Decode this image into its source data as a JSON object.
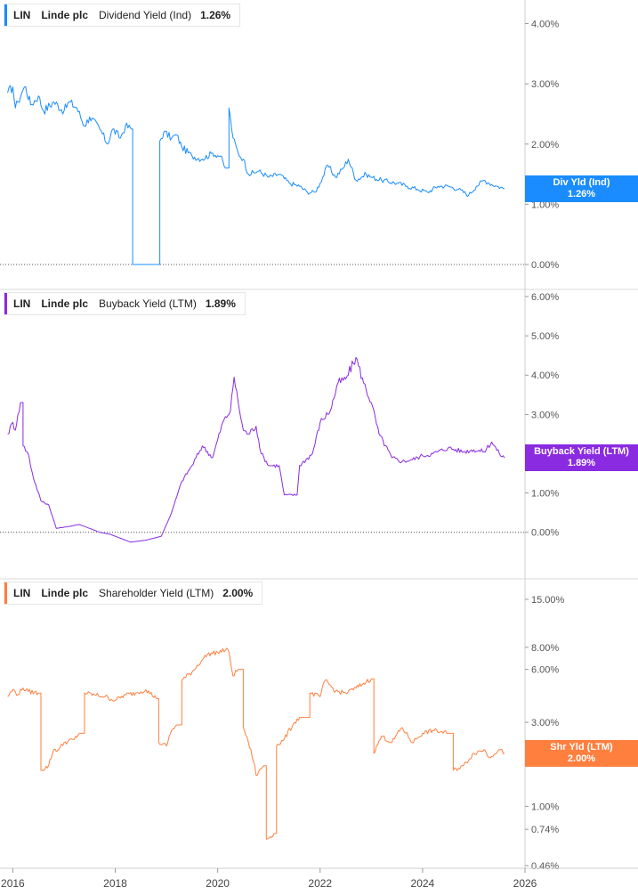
{
  "chart_data": [
    {
      "type": "line",
      "ticker": "LIN",
      "company": "Linde plc",
      "metric": "Dividend Yield (Ind)",
      "latest_value": "1.26%",
      "tag_label": "Div Yld (Ind)",
      "color": "#1a8cff",
      "y_scale": "linear",
      "ylim": [
        0,
        4.2
      ],
      "y_ticks": [
        {
          "value": 4,
          "label": "4.00%"
        },
        {
          "value": 3,
          "label": "3.00%"
        },
        {
          "value": 2,
          "label": "2.00%"
        },
        {
          "value": 1,
          "label": "1.00%"
        },
        {
          "value": 0,
          "label": "0.00%"
        }
      ],
      "zero_line": true,
      "series": [
        {
          "points": [
            [
              2015.9,
              2.85
            ],
            [
              2016.0,
              2.95
            ],
            [
              2016.05,
              2.6
            ],
            [
              2016.1,
              2.7
            ],
            [
              2016.2,
              2.9
            ],
            [
              2016.25,
              2.95
            ],
            [
              2016.35,
              2.65
            ],
            [
              2016.5,
              2.8
            ],
            [
              2016.6,
              2.55
            ],
            [
              2016.8,
              2.7
            ],
            [
              2017.0,
              2.55
            ],
            [
              2017.1,
              2.7
            ],
            [
              2017.25,
              2.6
            ],
            [
              2017.4,
              2.3
            ],
            [
              2017.5,
              2.45
            ],
            [
              2017.7,
              2.25
            ],
            [
              2017.85,
              2.0
            ],
            [
              2017.95,
              2.25
            ],
            [
              2018.1,
              2.1
            ],
            [
              2018.2,
              2.3
            ],
            [
              2018.32,
              2.25
            ],
            [
              2018.34,
              0.0
            ],
            [
              2018.85,
              0.0
            ],
            [
              2018.87,
              2.05
            ],
            [
              2018.95,
              2.2
            ],
            [
              2019.1,
              2.1
            ],
            [
              2019.2,
              2.15
            ],
            [
              2019.3,
              1.95
            ],
            [
              2019.5,
              1.8
            ],
            [
              2019.7,
              1.75
            ],
            [
              2019.9,
              1.85
            ],
            [
              2020.05,
              1.8
            ],
            [
              2020.15,
              1.6
            ],
            [
              2020.22,
              2.6
            ],
            [
              2020.3,
              2.1
            ],
            [
              2020.4,
              1.85
            ],
            [
              2020.5,
              1.75
            ],
            [
              2020.6,
              1.5
            ],
            [
              2020.8,
              1.55
            ],
            [
              2021.0,
              1.45
            ],
            [
              2021.2,
              1.5
            ],
            [
              2021.4,
              1.35
            ],
            [
              2021.6,
              1.3
            ],
            [
              2021.75,
              1.2
            ],
            [
              2021.9,
              1.2
            ],
            [
              2022.0,
              1.35
            ],
            [
              2022.15,
              1.65
            ],
            [
              2022.3,
              1.45
            ],
            [
              2022.45,
              1.6
            ],
            [
              2022.55,
              1.75
            ],
            [
              2022.7,
              1.4
            ],
            [
              2022.9,
              1.5
            ],
            [
              2023.0,
              1.45
            ],
            [
              2023.2,
              1.4
            ],
            [
              2023.5,
              1.35
            ],
            [
              2023.7,
              1.3
            ],
            [
              2023.9,
              1.25
            ],
            [
              2024.1,
              1.2
            ],
            [
              2024.3,
              1.3
            ],
            [
              2024.5,
              1.3
            ],
            [
              2024.7,
              1.25
            ],
            [
              2024.9,
              1.15
            ],
            [
              2025.05,
              1.3
            ],
            [
              2025.2,
              1.4
            ],
            [
              2025.3,
              1.35
            ],
            [
              2025.45,
              1.3
            ],
            [
              2025.6,
              1.26
            ]
          ]
        }
      ]
    },
    {
      "type": "line",
      "ticker": "LIN",
      "company": "Linde plc",
      "metric": "Buyback Yield (LTM)",
      "latest_value": "1.89%",
      "tag_label": "Buyback Yield (LTM)",
      "color": "#8a2be2",
      "y_scale": "linear",
      "ylim": [
        -0.55,
        6.0
      ],
      "y_ticks": [
        {
          "value": 6,
          "label": "6.00%"
        },
        {
          "value": 5,
          "label": "5.00%"
        },
        {
          "value": 4,
          "label": "4.00%"
        },
        {
          "value": 3,
          "label": "3.00%"
        },
        {
          "value": 2,
          "label": ""
        },
        {
          "value": 1,
          "label": "1.00%"
        },
        {
          "value": 0,
          "label": "0.00%"
        }
      ],
      "zero_line": true,
      "series": [
        {
          "points": [
            [
              2015.9,
              2.5
            ],
            [
              2016.0,
              2.8
            ],
            [
              2016.05,
              2.6
            ],
            [
              2016.1,
              3.0
            ],
            [
              2016.15,
              3.3
            ],
            [
              2016.2,
              2.2
            ],
            [
              2016.3,
              2.0
            ],
            [
              2016.4,
              1.4
            ],
            [
              2016.55,
              0.8
            ],
            [
              2016.7,
              0.7
            ],
            [
              2016.85,
              0.1
            ],
            [
              2017.1,
              0.15
            ],
            [
              2017.3,
              0.2
            ],
            [
              2017.5,
              0.1
            ],
            [
              2017.7,
              0.0
            ],
            [
              2017.9,
              -0.05
            ],
            [
              2018.1,
              -0.15
            ],
            [
              2018.3,
              -0.25
            ],
            [
              2018.6,
              -0.2
            ],
            [
              2018.9,
              -0.1
            ],
            [
              2019.1,
              0.5
            ],
            [
              2019.3,
              1.3
            ],
            [
              2019.5,
              1.7
            ],
            [
              2019.7,
              2.2
            ],
            [
              2019.9,
              1.9
            ],
            [
              2020.1,
              2.8
            ],
            [
              2020.25,
              3.1
            ],
            [
              2020.32,
              3.95
            ],
            [
              2020.4,
              3.3
            ],
            [
              2020.5,
              2.6
            ],
            [
              2020.6,
              2.5
            ],
            [
              2020.75,
              2.7
            ],
            [
              2020.85,
              2.0
            ],
            [
              2021.0,
              1.7
            ],
            [
              2021.2,
              1.7
            ],
            [
              2021.3,
              0.95
            ],
            [
              2021.55,
              0.95
            ],
            [
              2021.6,
              1.7
            ],
            [
              2021.85,
              2.0
            ],
            [
              2022.0,
              2.8
            ],
            [
              2022.2,
              3.1
            ],
            [
              2022.35,
              3.8
            ],
            [
              2022.5,
              3.9
            ],
            [
              2022.7,
              4.45
            ],
            [
              2022.85,
              3.8
            ],
            [
              2023.0,
              3.3
            ],
            [
              2023.15,
              2.5
            ],
            [
              2023.4,
              1.9
            ],
            [
              2023.6,
              1.8
            ],
            [
              2023.8,
              1.85
            ],
            [
              2024.0,
              1.95
            ],
            [
              2024.2,
              2.0
            ],
            [
              2024.5,
              2.15
            ],
            [
              2024.8,
              2.05
            ],
            [
              2025.0,
              2.1
            ],
            [
              2025.2,
              2.05
            ],
            [
              2025.35,
              2.3
            ],
            [
              2025.5,
              2.0
            ],
            [
              2025.6,
              1.89
            ]
          ]
        }
      ]
    },
    {
      "type": "line",
      "ticker": "LIN",
      "company": "Linde plc",
      "metric": "Shareholder Yield (LTM)",
      "latest_value": "2.00%",
      "tag_label": "Shr Yld (LTM)",
      "color": "#ff7f3f",
      "y_scale": "log",
      "ylim": [
        0.46,
        15.0
      ],
      "y_ticks": [
        {
          "value": 15,
          "label": "15.00%"
        },
        {
          "value": 8,
          "label": "8.00%"
        },
        {
          "value": 6,
          "label": "6.00%"
        },
        {
          "value": 3,
          "label": "3.00%"
        },
        {
          "value": 2,
          "label": ""
        },
        {
          "value": 1,
          "label": "1.00%"
        },
        {
          "value": 0.74,
          "label": "0.74%"
        },
        {
          "value": 0.46,
          "label": "0.46%"
        }
      ],
      "zero_line": false,
      "series": [
        {
          "points": [
            [
              2015.9,
              4.2
            ],
            [
              2016.0,
              4.6
            ],
            [
              2016.1,
              4.3
            ],
            [
              2016.2,
              4.7
            ],
            [
              2016.3,
              4.5
            ],
            [
              2016.5,
              4.4
            ],
            [
              2016.55,
              1.6
            ],
            [
              2016.7,
              1.7
            ],
            [
              2016.8,
              2.1
            ],
            [
              2016.9,
              2.1
            ],
            [
              2017.0,
              2.3
            ],
            [
              2017.2,
              2.4
            ],
            [
              2017.3,
              2.6
            ],
            [
              2017.4,
              4.4
            ],
            [
              2017.6,
              4.3
            ],
            [
              2017.8,
              4.2
            ],
            [
              2018.0,
              4.0
            ],
            [
              2018.2,
              4.3
            ],
            [
              2018.4,
              4.4
            ],
            [
              2018.6,
              4.6
            ],
            [
              2018.8,
              4.1
            ],
            [
              2018.85,
              2.3
            ],
            [
              2019.0,
              2.2
            ],
            [
              2019.1,
              2.7
            ],
            [
              2019.2,
              2.9
            ],
            [
              2019.3,
              5.2
            ],
            [
              2019.5,
              5.8
            ],
            [
              2019.7,
              6.8
            ],
            [
              2019.8,
              7.3
            ],
            [
              2020.0,
              7.5
            ],
            [
              2020.2,
              7.8
            ],
            [
              2020.3,
              5.5
            ],
            [
              2020.4,
              6.0
            ],
            [
              2020.5,
              2.8
            ],
            [
              2020.6,
              2.3
            ],
            [
              2020.7,
              1.8
            ],
            [
              2020.75,
              1.5
            ],
            [
              2020.9,
              1.7
            ],
            [
              2020.95,
              0.65
            ],
            [
              2021.1,
              0.7
            ],
            [
              2021.15,
              2.2
            ],
            [
              2021.3,
              2.4
            ],
            [
              2021.5,
              3.0
            ],
            [
              2021.6,
              3.2
            ],
            [
              2021.8,
              4.4
            ],
            [
              2022.0,
              4.2
            ],
            [
              2022.1,
              5.2
            ],
            [
              2022.3,
              4.5
            ],
            [
              2022.5,
              4.4
            ],
            [
              2022.7,
              4.7
            ],
            [
              2022.9,
              5.1
            ],
            [
              2023.0,
              5.3
            ],
            [
              2023.05,
              2.0
            ],
            [
              2023.2,
              2.5
            ],
            [
              2023.4,
              2.3
            ],
            [
              2023.6,
              2.8
            ],
            [
              2023.8,
              2.3
            ],
            [
              2024.0,
              2.6
            ],
            [
              2024.2,
              2.7
            ],
            [
              2024.5,
              2.6
            ],
            [
              2024.6,
              1.6
            ],
            [
              2024.8,
              1.7
            ],
            [
              2025.0,
              2.0
            ],
            [
              2025.2,
              2.1
            ],
            [
              2025.3,
              1.9
            ],
            [
              2025.5,
              2.1
            ],
            [
              2025.6,
              2.0
            ]
          ]
        }
      ]
    }
  ],
  "x_axis": {
    "range": [
      2015.75,
      2026.0
    ],
    "ticks": [
      {
        "value": 2016,
        "label": "2016"
      },
      {
        "value": 2018,
        "label": "2018"
      },
      {
        "value": 2020,
        "label": "2020"
      },
      {
        "value": 2022,
        "label": "2022"
      },
      {
        "value": 2024,
        "label": "2024"
      },
      {
        "value": 2026,
        "label": "2026"
      }
    ]
  }
}
